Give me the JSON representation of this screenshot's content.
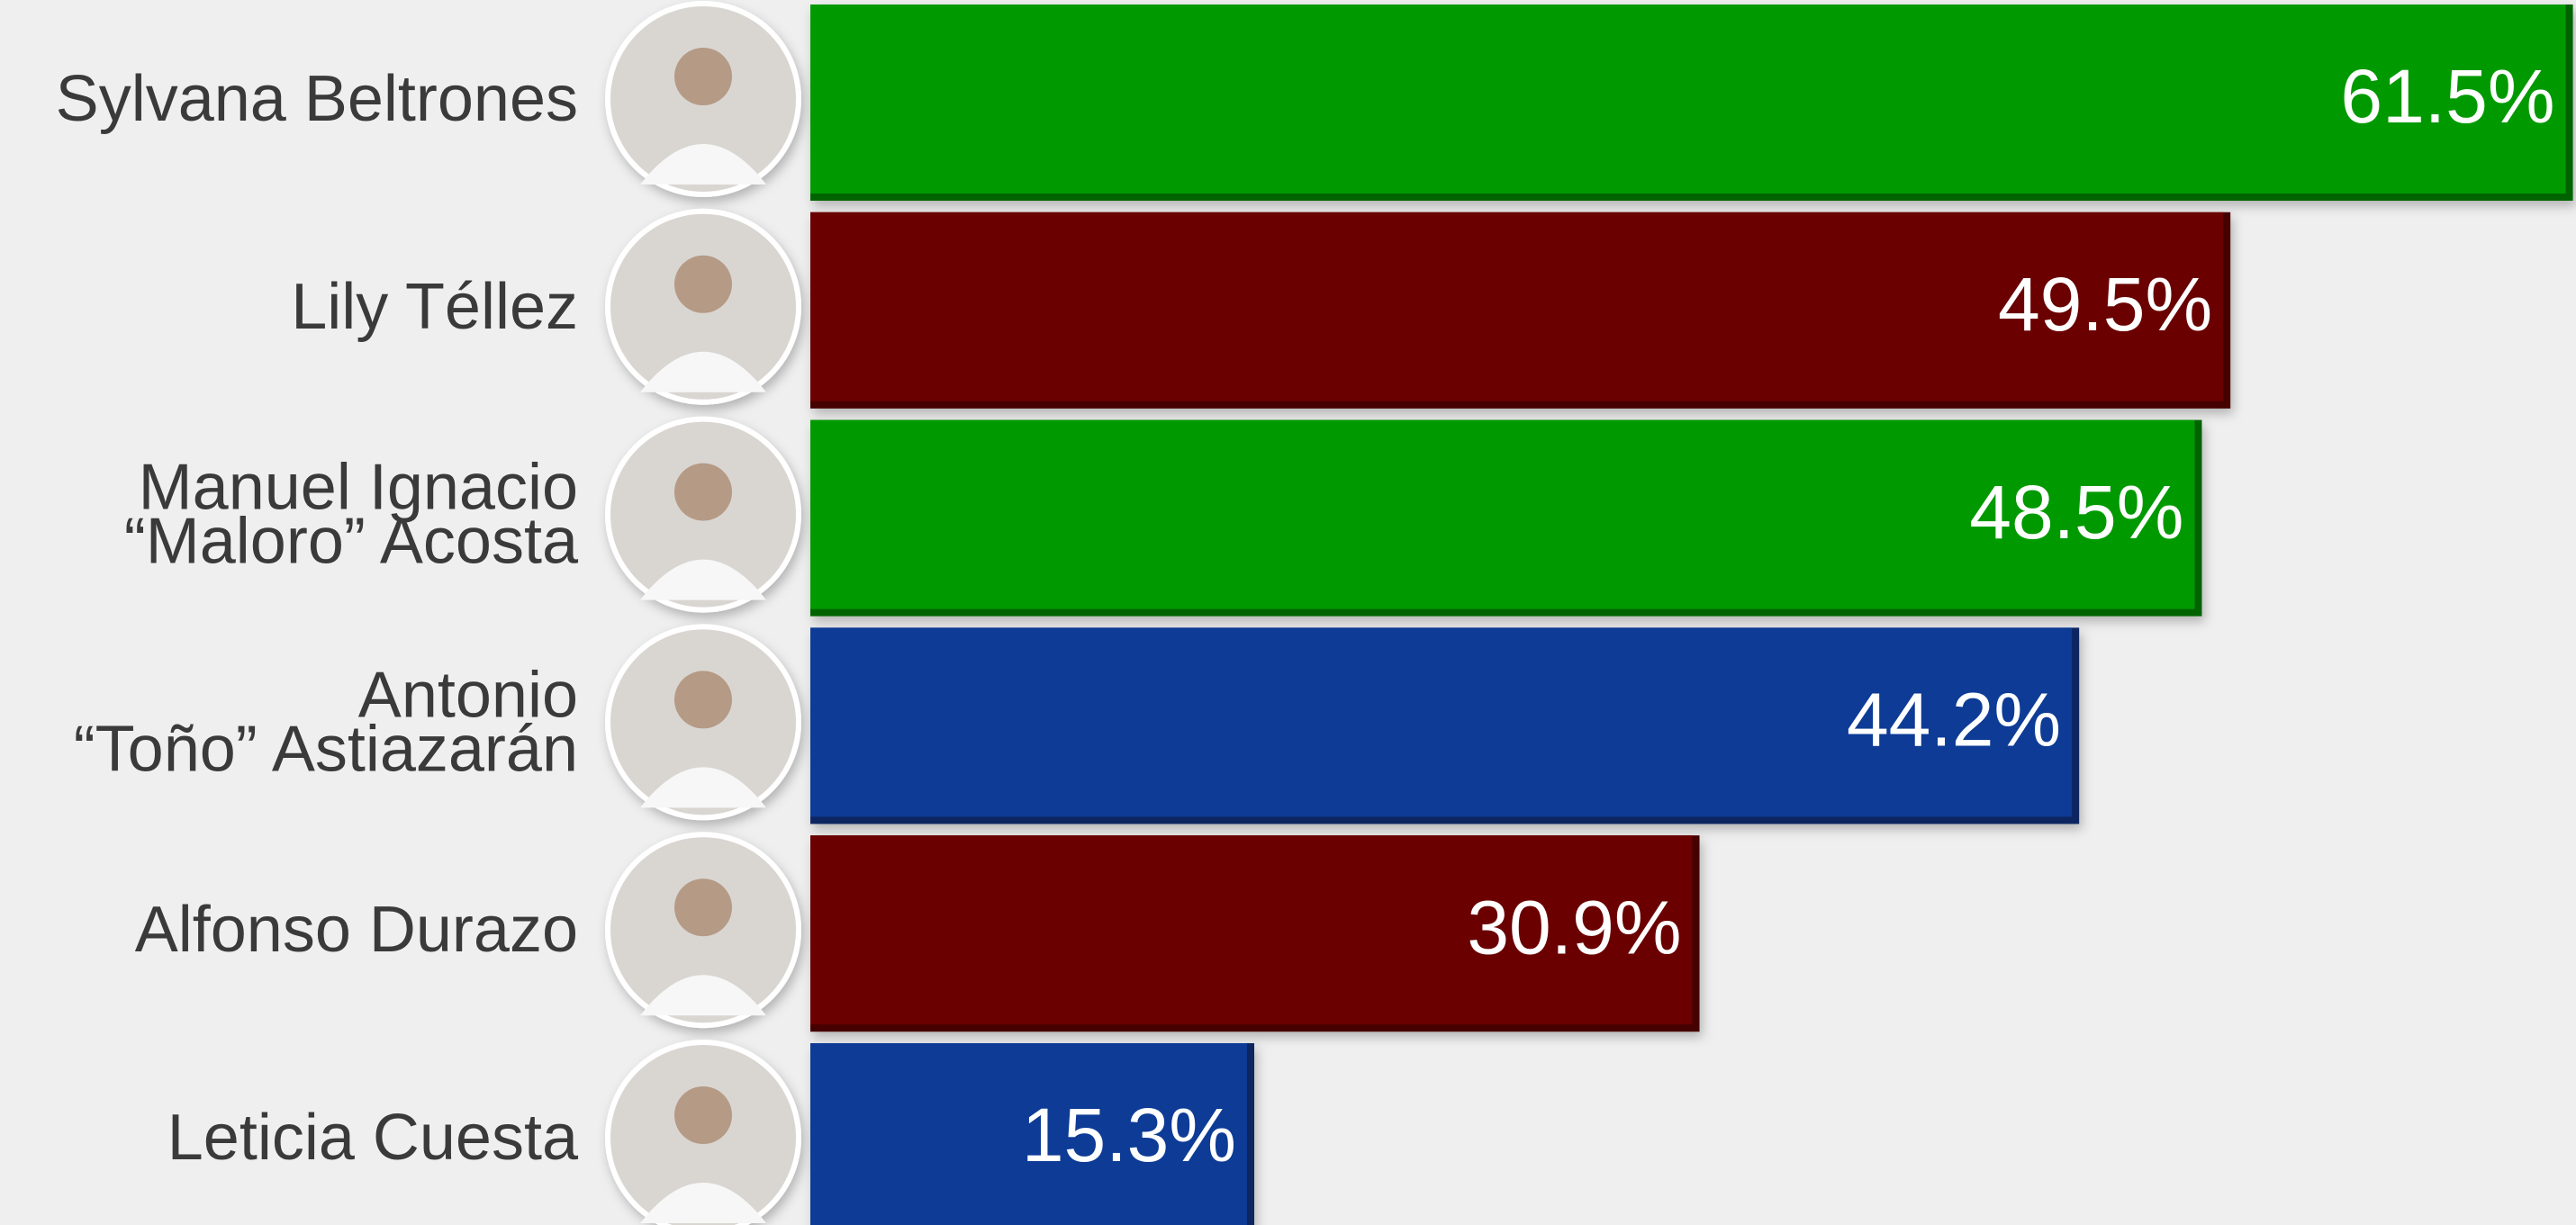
{
  "chart_data": {
    "type": "bar",
    "orientation": "horizontal",
    "categories": [
      "Sylvana Beltrones",
      "Lily Téllez",
      "Manuel Ignacio\n“Maloro” Acosta",
      "Antonio\n“Toño” Astiazarán",
      "Alfonso Durazo",
      "Leticia Cuesta"
    ],
    "values": [
      61.5,
      49.5,
      48.5,
      44.2,
      30.9,
      15.3
    ],
    "value_labels": [
      "61.5%",
      "49.5%",
      "48.5%",
      "44.2%",
      "30.9%",
      "15.3%"
    ],
    "colors": [
      "#069a06",
      "#6b0604",
      "#069a06",
      "#0b3a96",
      "#6b0604",
      "#0b3a96"
    ]
  }
}
